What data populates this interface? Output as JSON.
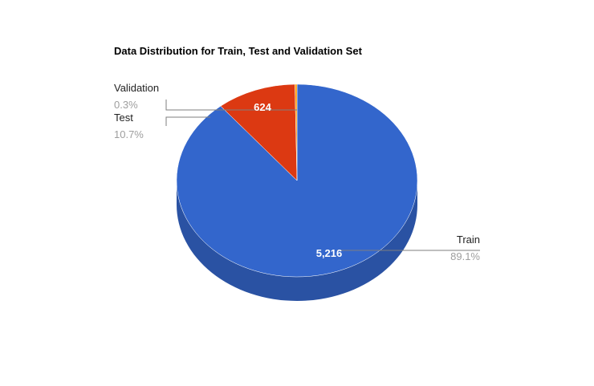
{
  "chart_data": {
    "type": "pie",
    "title": "Data Distribution for Train, Test and Validation Set",
    "three_d": true,
    "legend": "labeled",
    "slices": [
      {
        "label": "Train",
        "value": 5216,
        "value_label": "5,216",
        "percent_label": "89.1%",
        "color": "#3366cc",
        "side_color": "#2a52a3"
      },
      {
        "label": "Test",
        "value": 624,
        "value_label": "624",
        "percent_label": "10.7%",
        "color": "#dc3912",
        "side_color": "#a82c0e"
      },
      {
        "label": "Validation",
        "value": 16,
        "value_label": "",
        "percent_label": "0.3%",
        "color": "#ff9900",
        "side_color": "#cc7a00"
      }
    ]
  }
}
